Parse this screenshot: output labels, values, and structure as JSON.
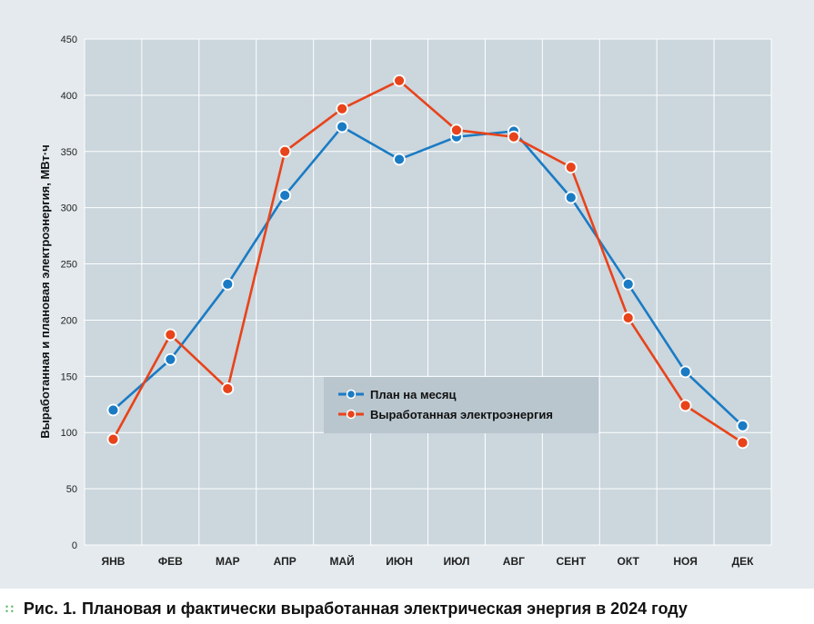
{
  "chart_data": {
    "type": "line",
    "categories": [
      "ЯНВ",
      "ФЕВ",
      "МАР",
      "АПР",
      "МАЙ",
      "ИЮН",
      "ИЮЛ",
      "АВГ",
      "СЕНТ",
      "ОКТ",
      "НОЯ",
      "ДЕК"
    ],
    "series": [
      {
        "name": "План на месяц",
        "color": "#1a7bc4",
        "values": [
          120,
          165,
          232,
          311,
          372,
          343,
          363,
          368,
          309,
          232,
          154,
          106
        ]
      },
      {
        "name": "Выработанная электроэнергия",
        "color": "#e8431a",
        "values": [
          94,
          187,
          139,
          350,
          388,
          413,
          369,
          363,
          336,
          202,
          124,
          91
        ]
      }
    ],
    "ylabel": "Выработанная и плановая электроэнергия, МВт·ч",
    "xlabel": "",
    "ylim": [
      0,
      450
    ],
    "yticks": [
      0,
      50,
      100,
      150,
      200,
      250,
      300,
      350,
      400,
      450
    ],
    "grid": true,
    "legend_position": "center-right",
    "plot_background": "#cbd6dd",
    "legend_background": "#b9c6ce"
  },
  "caption": {
    "number": "Рис. 1.",
    "text": "Плановая и фактически выработанная электрическая энергия в 2024 году"
  }
}
